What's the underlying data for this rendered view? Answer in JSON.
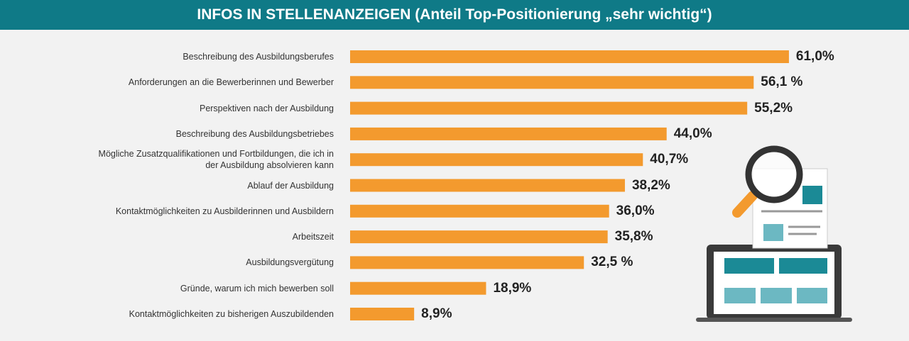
{
  "chart_data": {
    "type": "bar",
    "orientation": "horizontal",
    "title": "INFOS IN STELLENANZEIGEN (Anteil Top-Positionierung „sehr wichtig“)",
    "categories": [
      "Beschreibung des Ausbildungsberufes",
      "Anforderungen an die Bewerberinnen und Bewerber",
      "Perspektiven nach der Ausbildung",
      "Beschreibung des Ausbildungsbetriebes",
      "Mögliche Zusatzqualifikationen und Fortbildungen, die ich in der Ausbildung absolvieren kann",
      "Ablauf der Ausbildung",
      "Kontaktmöglichkeiten zu Ausbilderinnen und Ausbildern",
      "Arbeitszeit",
      "Ausbildungsvergütung",
      "Gründe, warum ich mich bewerben soll",
      "Kontaktmöglichkeiten zu bisherigen Auszubildenden"
    ],
    "values": [
      61.0,
      56.1,
      55.2,
      44.0,
      40.7,
      38.2,
      36.0,
      35.8,
      32.5,
      18.9,
      8.9
    ],
    "value_labels": [
      "61,0%",
      "56,1 %",
      "55,2%",
      "44,0%",
      "40,7%",
      "38,2%",
      "36,0%",
      "35,8%",
      "32,5 %",
      "18,9%",
      "8,9%"
    ],
    "color": "#f39a2e"
  }
}
